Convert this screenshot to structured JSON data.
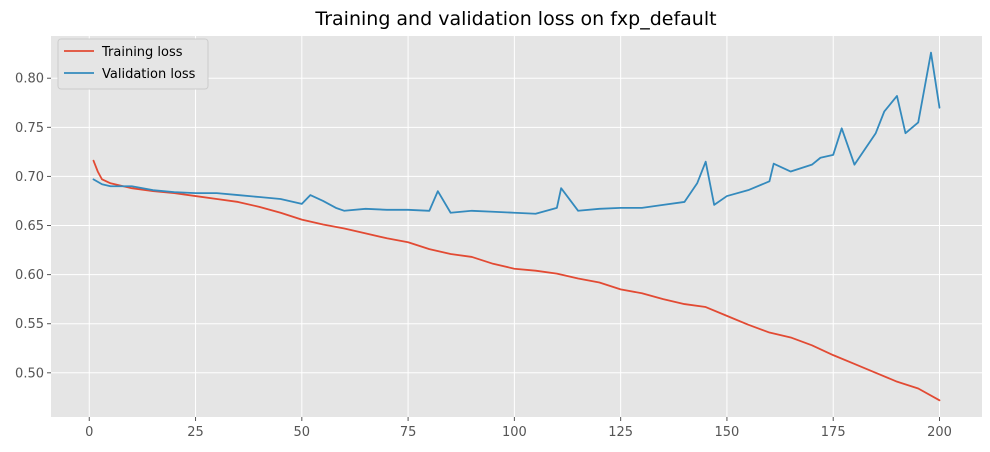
{
  "chart_data": {
    "type": "line",
    "title": "Training and validation loss on fxp_default",
    "xlabel": "",
    "ylabel": "",
    "xlim": [
      -9,
      210
    ],
    "ylim": [
      0.455,
      0.843
    ],
    "grid": true,
    "legend_position": "top-left",
    "x_ticks": [
      0,
      25,
      50,
      75,
      100,
      125,
      150,
      175,
      200
    ],
    "y_ticks": [
      0.5,
      0.55,
      0.6,
      0.65,
      0.7,
      0.75,
      0.8
    ],
    "x_tick_labels": [
      "0",
      "25",
      "50",
      "75",
      "100",
      "125",
      "150",
      "175",
      "200"
    ],
    "y_tick_labels": [
      "0.50",
      "0.55",
      "0.60",
      "0.65",
      "0.70",
      "0.75",
      "0.80"
    ],
    "colors": {
      "plot_background": "#E5E5E5",
      "grid": "#FFFFFF",
      "training": "#E24A33",
      "validation": "#348ABD"
    },
    "series": [
      {
        "name": "Training loss",
        "x": [
          1,
          2,
          3,
          5,
          8,
          10,
          15,
          20,
          25,
          30,
          35,
          40,
          45,
          50,
          55,
          60,
          65,
          70,
          75,
          80,
          85,
          90,
          95,
          100,
          105,
          110,
          115,
          120,
          125,
          130,
          135,
          140,
          145,
          150,
          155,
          160,
          165,
          170,
          175,
          180,
          185,
          190,
          195,
          200
        ],
        "values": [
          0.716,
          0.705,
          0.697,
          0.693,
          0.69,
          0.688,
          0.685,
          0.683,
          0.68,
          0.677,
          0.674,
          0.669,
          0.663,
          0.656,
          0.651,
          0.647,
          0.642,
          0.637,
          0.633,
          0.626,
          0.621,
          0.618,
          0.611,
          0.606,
          0.604,
          0.601,
          0.596,
          0.592,
          0.585,
          0.581,
          0.575,
          0.57,
          0.567,
          0.558,
          0.549,
          0.541,
          0.536,
          0.528,
          0.518,
          0.509,
          0.5,
          0.491,
          0.484,
          0.472
        ]
      },
      {
        "name": "Validation loss",
        "x": [
          1,
          3,
          5,
          7,
          10,
          15,
          20,
          25,
          30,
          35,
          40,
          45,
          50,
          52,
          55,
          58,
          60,
          65,
          70,
          75,
          80,
          82,
          85,
          90,
          95,
          100,
          105,
          110,
          111,
          115,
          120,
          125,
          130,
          135,
          140,
          143,
          145,
          147,
          150,
          155,
          160,
          161,
          165,
          170,
          172,
          175,
          177,
          180,
          185,
          187,
          190,
          192,
          195,
          198,
          200
        ],
        "values": [
          0.697,
          0.692,
          0.69,
          0.69,
          0.69,
          0.686,
          0.684,
          0.683,
          0.683,
          0.681,
          0.679,
          0.677,
          0.672,
          0.681,
          0.675,
          0.668,
          0.665,
          0.667,
          0.666,
          0.666,
          0.665,
          0.685,
          0.663,
          0.665,
          0.664,
          0.663,
          0.662,
          0.668,
          0.688,
          0.665,
          0.667,
          0.668,
          0.668,
          0.671,
          0.674,
          0.693,
          0.715,
          0.671,
          0.68,
          0.686,
          0.695,
          0.713,
          0.705,
          0.712,
          0.719,
          0.722,
          0.749,
          0.712,
          0.744,
          0.766,
          0.782,
          0.744,
          0.755,
          0.826,
          0.77
        ]
      }
    ]
  }
}
